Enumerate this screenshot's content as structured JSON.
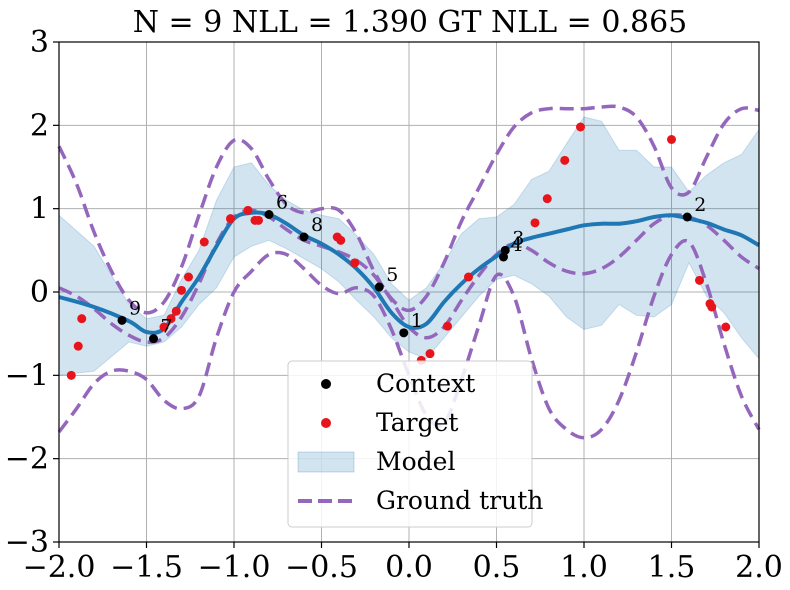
{
  "chart_data": {
    "type": "line",
    "title": "N = 9 NLL = 1.390 GT NLL = 0.865",
    "xlabel": "",
    "ylabel": "",
    "xlim": [
      -2.0,
      2.0
    ],
    "ylim": [
      -3,
      3
    ],
    "xticks": [
      -2.0,
      -1.5,
      -1.0,
      -0.5,
      0.0,
      0.5,
      1.0,
      1.5,
      2.0
    ],
    "xtick_labels": [
      "−2.0",
      "−1.5",
      "−1.0",
      "−0.5",
      "0.0",
      "0.5",
      "1.0",
      "1.5",
      "2.0"
    ],
    "yticks": [
      -3,
      -2,
      -1,
      0,
      1,
      2,
      3
    ],
    "ytick_labels": [
      "−3",
      "−2",
      "−1",
      "0",
      "1",
      "2",
      "3"
    ],
    "grid": true,
    "legend_position": "bottom-center",
    "legend": [
      "Context",
      "Target",
      "Model",
      "Ground truth"
    ],
    "colors": {
      "context": "#000000",
      "target": "#e8141b",
      "model_line": "#1f77b4",
      "model_band": "#1f77b4",
      "ground_truth": "#9467bd",
      "grid": "#b0b0b0"
    },
    "context_points": [
      {
        "label": "1",
        "x": -0.03,
        "y": -0.49
      },
      {
        "label": "2",
        "x": 1.59,
        "y": 0.9
      },
      {
        "label": "3",
        "x": 0.55,
        "y": 0.5
      },
      {
        "label": "4",
        "x": 0.54,
        "y": 0.42
      },
      {
        "label": "5",
        "x": -0.17,
        "y": 0.06
      },
      {
        "label": "6",
        "x": -0.8,
        "y": 0.93
      },
      {
        "label": "7",
        "x": -1.46,
        "y": -0.56
      },
      {
        "label": "8",
        "x": -0.6,
        "y": 0.66
      },
      {
        "label": "9",
        "x": -1.64,
        "y": -0.34
      }
    ],
    "target_points": [
      {
        "x": -1.93,
        "y": -1.0
      },
      {
        "x": -1.89,
        "y": -0.65
      },
      {
        "x": -1.87,
        "y": -0.32
      },
      {
        "x": -1.4,
        "y": -0.42
      },
      {
        "x": -1.36,
        "y": -0.32
      },
      {
        "x": -1.33,
        "y": -0.23
      },
      {
        "x": -1.3,
        "y": 0.02
      },
      {
        "x": -1.26,
        "y": 0.18
      },
      {
        "x": -1.17,
        "y": 0.6
      },
      {
        "x": -1.02,
        "y": 0.88
      },
      {
        "x": -0.92,
        "y": 0.98
      },
      {
        "x": -0.88,
        "y": 0.86
      },
      {
        "x": -0.86,
        "y": 0.86
      },
      {
        "x": -0.41,
        "y": 0.66
      },
      {
        "x": -0.39,
        "y": 0.62
      },
      {
        "x": -0.31,
        "y": 0.35
      },
      {
        "x": 0.07,
        "y": -0.82
      },
      {
        "x": 0.12,
        "y": -0.74
      },
      {
        "x": 0.22,
        "y": -0.41
      },
      {
        "x": 0.34,
        "y": 0.18
      },
      {
        "x": 0.72,
        "y": 0.83
      },
      {
        "x": 0.79,
        "y": 1.12
      },
      {
        "x": 0.89,
        "y": 1.58
      },
      {
        "x": 0.98,
        "y": 1.98
      },
      {
        "x": 1.5,
        "y": 1.83
      },
      {
        "x": 1.66,
        "y": 0.14
      },
      {
        "x": 1.72,
        "y": -0.14
      },
      {
        "x": 1.73,
        "y": -0.18
      },
      {
        "x": 1.81,
        "y": -0.42
      }
    ],
    "model_mean": {
      "x": [
        -2.0,
        -1.8,
        -1.6,
        -1.5,
        -1.4,
        -1.3,
        -1.2,
        -1.1,
        -1.0,
        -0.9,
        -0.8,
        -0.7,
        -0.6,
        -0.5,
        -0.4,
        -0.3,
        -0.2,
        -0.1,
        0.0,
        0.1,
        0.2,
        0.3,
        0.4,
        0.5,
        0.6,
        0.7,
        0.8,
        0.9,
        1.0,
        1.1,
        1.2,
        1.3,
        1.4,
        1.5,
        1.6,
        1.7,
        1.8,
        1.9,
        2.0
      ],
      "y": [
        -0.06,
        -0.18,
        -0.35,
        -0.48,
        -0.44,
        -0.12,
        0.18,
        0.55,
        0.88,
        0.95,
        0.93,
        0.82,
        0.68,
        0.58,
        0.45,
        0.28,
        0.05,
        -0.25,
        -0.42,
        -0.38,
        -0.12,
        0.1,
        0.28,
        0.43,
        0.58,
        0.65,
        0.7,
        0.75,
        0.8,
        0.82,
        0.82,
        0.85,
        0.9,
        0.92,
        0.88,
        0.83,
        0.75,
        0.68,
        0.56
      ]
    },
    "model_upper": {
      "x": [
        -2.0,
        -1.8,
        -1.6,
        -1.5,
        -1.4,
        -1.3,
        -1.2,
        -1.1,
        -1.0,
        -0.9,
        -0.8,
        -0.7,
        -0.6,
        -0.5,
        -0.4,
        -0.3,
        -0.2,
        -0.1,
        0.0,
        0.1,
        0.2,
        0.3,
        0.4,
        0.5,
        0.6,
        0.7,
        0.8,
        0.9,
        1.0,
        1.1,
        1.2,
        1.3,
        1.4,
        1.5,
        1.6,
        1.7,
        1.8,
        1.9,
        2.0
      ],
      "y": [
        0.92,
        0.55,
        -0.15,
        -0.32,
        -0.28,
        0.15,
        0.5,
        1.1,
        1.5,
        1.55,
        1.28,
        1.1,
        0.98,
        0.92,
        0.88,
        0.68,
        0.45,
        0.1,
        -0.1,
        0.05,
        0.35,
        0.7,
        0.88,
        0.9,
        1.05,
        1.35,
        1.45,
        1.78,
        2.1,
        2.05,
        1.7,
        1.7,
        1.5,
        1.5,
        1.2,
        1.4,
        1.55,
        1.65,
        1.95
      ]
    },
    "model_lower": {
      "x": [
        -2.0,
        -1.8,
        -1.6,
        -1.5,
        -1.4,
        -1.3,
        -1.2,
        -1.1,
        -1.0,
        -0.9,
        -0.8,
        -0.7,
        -0.6,
        -0.5,
        -0.4,
        -0.3,
        -0.2,
        -0.1,
        0.0,
        0.1,
        0.2,
        0.3,
        0.4,
        0.5,
        0.6,
        0.7,
        0.8,
        0.9,
        1.0,
        1.1,
        1.2,
        1.3,
        1.4,
        1.5,
        1.6,
        1.7,
        1.8,
        1.9,
        2.0
      ],
      "y": [
        -1.0,
        -0.95,
        -0.6,
        -0.65,
        -0.6,
        -0.42,
        -0.15,
        0.05,
        0.42,
        0.55,
        0.62,
        0.52,
        0.4,
        0.28,
        0.12,
        -0.1,
        -0.3,
        -0.55,
        -0.72,
        -0.8,
        -0.55,
        -0.3,
        -0.05,
        0.15,
        0.2,
        0.1,
        -0.05,
        -0.3,
        -0.45,
        -0.4,
        -0.15,
        -0.28,
        -0.3,
        -0.15,
        0.35,
        -0.05,
        -0.25,
        -0.55,
        -0.8
      ]
    },
    "ground_truth_mean": {
      "x": [
        -2.0,
        -1.9,
        -1.8,
        -1.7,
        -1.6,
        -1.5,
        -1.4,
        -1.3,
        -1.2,
        -1.1,
        -1.0,
        -0.9,
        -0.8,
        -0.7,
        -0.6,
        -0.5,
        -0.4,
        -0.3,
        -0.2,
        -0.1,
        0.0,
        0.1,
        0.2,
        0.3,
        0.4,
        0.5,
        0.6,
        0.7,
        0.8,
        0.9,
        1.0,
        1.1,
        1.2,
        1.3,
        1.4,
        1.5,
        1.6,
        1.7,
        1.8,
        1.9,
        2.0
      ],
      "y": [
        0.05,
        -0.05,
        -0.2,
        -0.38,
        -0.52,
        -0.6,
        -0.55,
        -0.3,
        0.1,
        0.58,
        0.9,
        0.98,
        0.9,
        0.75,
        0.62,
        0.55,
        0.48,
        0.38,
        0.2,
        -0.1,
        -0.42,
        -0.55,
        -0.42,
        -0.1,
        0.2,
        0.45,
        0.58,
        0.5,
        0.35,
        0.25,
        0.22,
        0.28,
        0.42,
        0.62,
        0.82,
        0.92,
        0.9,
        0.8,
        0.62,
        0.42,
        0.28
      ]
    },
    "ground_truth_upper": {
      "x": [
        -2.0,
        -1.9,
        -1.8,
        -1.7,
        -1.6,
        -1.5,
        -1.4,
        -1.3,
        -1.2,
        -1.1,
        -1.0,
        -0.9,
        -0.8,
        -0.7,
        -0.6,
        -0.5,
        -0.4,
        -0.3,
        -0.2,
        -0.1,
        0.0,
        0.1,
        0.2,
        0.3,
        0.4,
        0.5,
        0.6,
        0.7,
        0.8,
        0.9,
        1.0,
        1.1,
        1.2,
        1.3,
        1.4,
        1.5,
        1.6,
        1.7,
        1.8,
        1.9,
        2.0
      ],
      "y": [
        1.75,
        1.3,
        0.72,
        0.25,
        -0.1,
        -0.25,
        -0.12,
        0.3,
        0.92,
        1.5,
        1.82,
        1.72,
        1.35,
        1.05,
        0.95,
        1.0,
        0.98,
        0.7,
        0.25,
        -0.08,
        -0.22,
        -0.05,
        0.35,
        0.85,
        1.25,
        1.65,
        1.98,
        2.15,
        2.2,
        2.2,
        2.2,
        2.22,
        2.22,
        2.1,
        1.75,
        1.25,
        1.2,
        1.62,
        2.02,
        2.2,
        2.18
      ]
    },
    "ground_truth_lower": {
      "x": [
        -2.0,
        -1.9,
        -1.8,
        -1.7,
        -1.6,
        -1.5,
        -1.4,
        -1.3,
        -1.2,
        -1.1,
        -1.0,
        -0.9,
        -0.8,
        -0.7,
        -0.6,
        -0.5,
        -0.4,
        -0.3,
        -0.2,
        -0.1,
        0.0,
        0.1,
        0.2,
        0.3,
        0.4,
        0.5,
        0.6,
        0.7,
        0.8,
        0.9,
        1.0,
        1.1,
        1.2,
        1.3,
        1.4,
        1.5,
        1.6,
        1.7,
        1.8,
        1.9,
        2.0
      ],
      "y": [
        -1.68,
        -1.4,
        -1.1,
        -0.95,
        -0.95,
        -1.05,
        -1.3,
        -1.4,
        -1.25,
        -0.55,
        0.0,
        0.25,
        0.45,
        0.45,
        0.28,
        0.08,
        -0.02,
        0.05,
        -0.05,
        -0.45,
        -1.0,
        -1.48,
        -1.58,
        -1.05,
        -0.4,
        0.2,
        -0.05,
        -0.8,
        -1.4,
        -1.65,
        -1.75,
        -1.65,
        -1.3,
        -0.72,
        -0.05,
        0.45,
        0.6,
        0.1,
        -0.62,
        -1.25,
        -1.65
      ]
    }
  }
}
